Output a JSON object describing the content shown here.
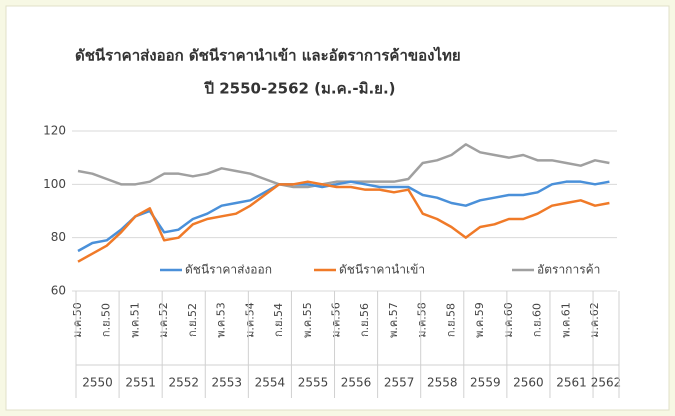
{
  "chart_data": {
    "type": "line",
    "title": "ดัชนีราคาส่งออก ดัชนีราคานำเข้า และอัตราการค้าของไทย",
    "subtitle": "ปี 2550-2562 (ม.ค.-มิ.ย.)",
    "categories": [
      "ม.ค.50",
      null,
      "ก.ย.50",
      null,
      "พ.ค.51",
      null,
      "ม.ค.52",
      null,
      "ก.ย.52",
      null,
      "พ.ค.53",
      null,
      "ม.ค.54",
      null,
      "ก.ย.54",
      null,
      "พ.ค.55",
      null,
      "ม.ค.56",
      null,
      "ก.ย.56",
      null,
      "พ.ค.57",
      null,
      "ม.ค.58",
      null,
      "ก.ย.58",
      null,
      "พ.ค.59",
      null,
      "ม.ค.60",
      null,
      "ก.ย.60",
      null,
      "พ.ค.61",
      null,
      "ม.ค.62",
      null
    ],
    "years": [
      "2550",
      "2551",
      "2552",
      "2553",
      "2554",
      "2555",
      "2556",
      "2557",
      "2558",
      "2559",
      "2560",
      "2561",
      "2562"
    ],
    "series": [
      {
        "name": "ดัชนีราคาส่งออก",
        "color": "#4a90d9",
        "values": [
          75,
          78,
          79,
          83,
          88,
          90,
          82,
          83,
          87,
          89,
          92,
          93,
          94,
          97,
          100,
          100,
          100,
          99,
          100,
          101,
          100,
          99,
          99,
          99,
          96,
          95,
          93,
          92,
          94,
          95,
          96,
          96,
          97,
          100,
          101,
          101,
          100,
          101
        ]
      },
      {
        "name": "ดัชนีราคานำเข้า",
        "color": "#f07a28",
        "values": [
          71,
          74,
          77,
          82,
          88,
          91,
          79,
          80,
          85,
          87,
          88,
          89,
          92,
          96,
          100,
          100,
          101,
          100,
          99,
          99,
          98,
          98,
          97,
          98,
          89,
          87,
          84,
          80,
          84,
          85,
          87,
          87,
          89,
          92,
          93,
          94,
          92,
          93
        ]
      },
      {
        "name": "อัตราการค้า",
        "color": "#a0a0a0",
        "values": [
          105,
          104,
          102,
          100,
          100,
          101,
          104,
          104,
          103,
          104,
          106,
          105,
          104,
          102,
          100,
          99,
          99,
          100,
          101,
          101,
          101,
          101,
          101,
          102,
          108,
          109,
          111,
          115,
          112,
          111,
          110,
          111,
          109,
          109,
          108,
          107,
          109,
          108
        ]
      }
    ],
    "ylim": [
      60,
      120
    ],
    "yticks": [
      60,
      80,
      100,
      120
    ],
    "grid": true,
    "legend": "bottom"
  }
}
